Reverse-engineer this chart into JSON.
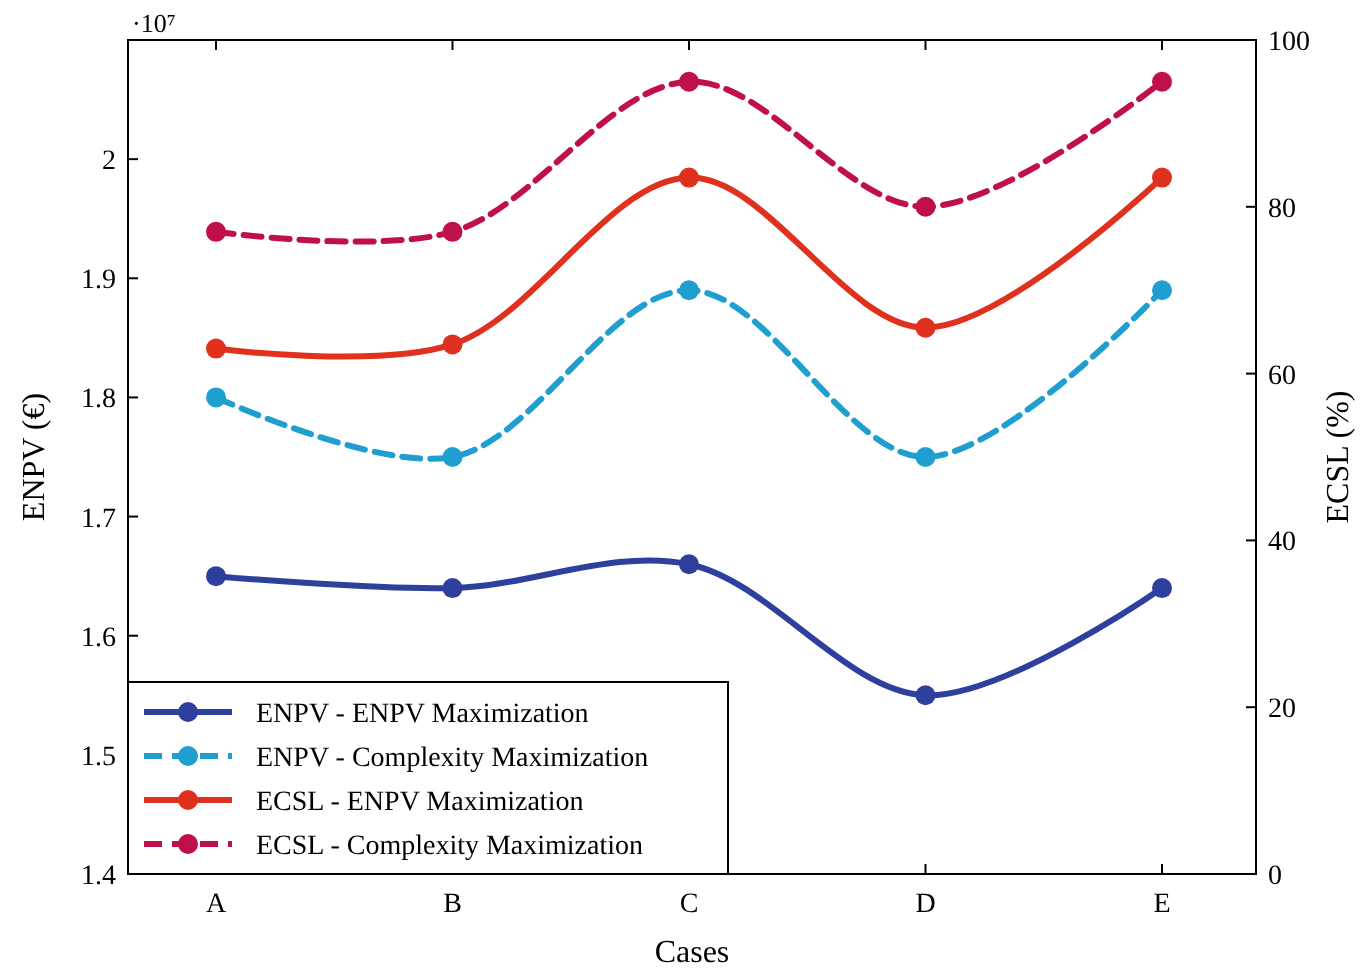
{
  "chart_data": {
    "type": "line",
    "xlabel": "Cases",
    "ylabel": "ENPV (€)",
    "y2label": "ECSL (%)",
    "annotations": [
      "·10⁷"
    ],
    "categories": [
      "A",
      "B",
      "C",
      "D",
      "E"
    ],
    "ylim": [
      1.4,
      2.1
    ],
    "yticks": [
      1.4,
      1.5,
      1.6,
      1.7,
      1.8,
      1.9,
      2
    ],
    "y2lim": [
      0,
      100
    ],
    "y2ticks": [
      0,
      20,
      40,
      60,
      80,
      100
    ],
    "legend": "bottom left",
    "marker": "circle",
    "grid": false,
    "series": [
      {
        "name": "ENPV - ENPV Maximization",
        "color": "#2e3f9e",
        "values": [
          1.65,
          1.64,
          1.66,
          1.55,
          1.64
        ],
        "line_style": "solid"
      },
      {
        "name": "ENPV - Complexity Maximization",
        "color": "#1f9fd0",
        "values": [
          1.8,
          1.75,
          1.89,
          1.75,
          1.89
        ],
        "line_style": "dashed"
      },
      {
        "name": "ECSL - ENPV Maximization",
        "color": "#e0301e",
        "values": [
          63,
          63.5,
          83.5,
          65.5,
          83.5
        ],
        "axis": "y2",
        "line_style": "solid"
      },
      {
        "name": "ECSL - Complexity Maximization",
        "color": "#c0104a",
        "values": [
          77,
          77,
          95,
          80,
          95
        ],
        "axis": "y2",
        "line_style": "dashed"
      }
    ]
  }
}
